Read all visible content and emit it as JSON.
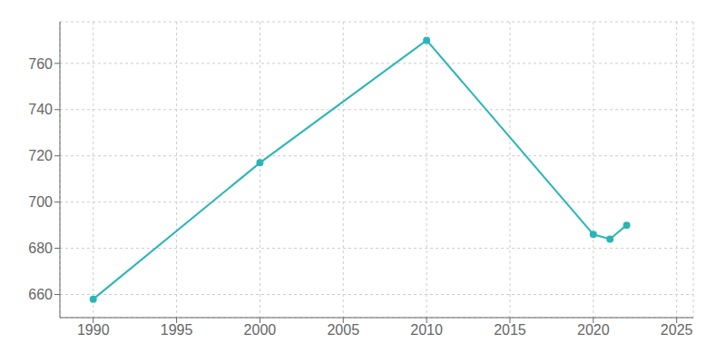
{
  "chart_data": {
    "type": "line",
    "x": [
      1990,
      2000,
      2010,
      2020,
      2021,
      2022
    ],
    "values": [
      658,
      717,
      770,
      686,
      684,
      690
    ],
    "color": "#2ab5b5",
    "marker": "circle",
    "xlim": [
      1988,
      2026
    ],
    "ylim": [
      650,
      778
    ],
    "xticks": [
      1990,
      1995,
      2000,
      2005,
      2010,
      2015,
      2020,
      2025
    ],
    "yticks": [
      660,
      680,
      700,
      720,
      740,
      760
    ],
    "grid": true
  }
}
